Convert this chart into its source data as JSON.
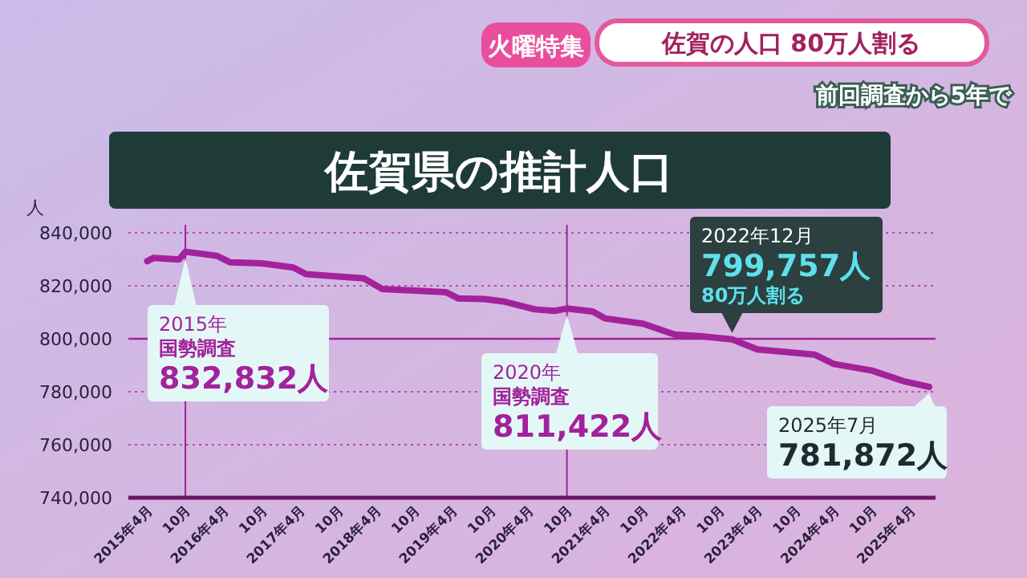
{
  "chart_data": {
    "type": "line",
    "title": "佐賀県の推計人口",
    "subtitle": "佐賀の人口 80万人割る",
    "ylabel": "人",
    "annotations": [
      "火曜特集",
      "前回調査から5年で",
      "2015年",
      "2020年",
      {
        "text": "国勢調査\n832,832人",
        "x": "2015-10",
        "y": 832832
      },
      {
        "text": "国勢調査\n811,422人",
        "x": "2020-10",
        "y": 811422
      },
      {
        "text": "2022年12月\n799,757人\n80万人割る",
        "x": "2022-12",
        "y": 799757
      },
      {
        "text": "2025年7月\n781,872人",
        "x": "2025-07",
        "y": 781872
      }
    ],
    "x": [
      "2015-04",
      "2015-05",
      "2015-09",
      "2015-10",
      "2016-03",
      "2016-05",
      "2016-10",
      "2017-03",
      "2017-05",
      "2018-02",
      "2018-05",
      "2019-03",
      "2019-05",
      "2019-09",
      "2019-12",
      "2020-05",
      "2020-08",
      "2020-10",
      "2021-02",
      "2021-04",
      "2021-10",
      "2022-03",
      "2022-07",
      "2022-12",
      "2023-04",
      "2024-01",
      "2024-04",
      "2024-10",
      "2025-03",
      "2025-07"
    ],
    "series": [
      {
        "color": "#a3229b",
        "values": [
          829300,
          830500,
          829900,
          832832,
          831300,
          828900,
          828500,
          826900,
          824400,
          822800,
          818800,
          817600,
          815200,
          815000,
          814100,
          811100,
          810500,
          811422,
          810300,
          807700,
          805700,
          801600,
          801000,
          799757,
          796000,
          794000,
          790500,
          788000,
          784000,
          781872
        ]
      }
    ],
    "xlim": [
      "2015-01",
      "2025-08"
    ],
    "xticks": [
      {
        "value": "2015-04",
        "label": "2015年4月"
      },
      {
        "value": "2015-10",
        "label": "10月"
      },
      {
        "value": "2016-04",
        "label": "2016年4月"
      },
      {
        "value": "2016-10",
        "label": "10月"
      },
      {
        "value": "2017-04",
        "label": "2017年4月"
      },
      {
        "value": "2017-10",
        "label": "10月"
      },
      {
        "value": "2018-04",
        "label": "2018年4月"
      },
      {
        "value": "2018-10",
        "label": "10月"
      },
      {
        "value": "2019-04",
        "label": "2019年4月"
      },
      {
        "value": "2019-10",
        "label": "10月"
      },
      {
        "value": "2020-04",
        "label": "2020年4月"
      },
      {
        "value": "2020-10",
        "label": "10月"
      },
      {
        "value": "2021-04",
        "label": "2021年4月"
      },
      {
        "value": "2021-10",
        "label": "10月"
      },
      {
        "value": "2022-04",
        "label": "2022年4月"
      },
      {
        "value": "2022-10",
        "label": "10月"
      },
      {
        "value": "2023-04",
        "label": "2023年4月"
      },
      {
        "value": "2023-10",
        "label": "10月"
      },
      {
        "value": "2024-04",
        "label": "2024年4月"
      },
      {
        "value": "2024-10",
        "label": "10月"
      },
      {
        "value": "2025-04",
        "label": "2025年4月"
      }
    ],
    "ylim": [
      740000,
      840000
    ],
    "yticks": [
      {
        "value": 740000,
        "label": "740,000"
      },
      {
        "value": 760000,
        "label": "760,000"
      },
      {
        "value": 780000,
        "label": "780,000"
      },
      {
        "value": 800000,
        "label": "800,000"
      },
      {
        "value": 820000,
        "label": "820,000"
      },
      {
        "value": 840000,
        "label": "840,000"
      }
    ],
    "grid": "y",
    "marker": "none",
    "line_style": "solid",
    "ref_lines": [
      {
        "axis": "x",
        "value": "2015-10",
        "color": "#a3229b"
      },
      {
        "axis": "x",
        "value": "2020-10",
        "color": "#a3229b"
      },
      {
        "axis": "y",
        "value": 800000,
        "color": "#a3229b"
      }
    ]
  }
}
